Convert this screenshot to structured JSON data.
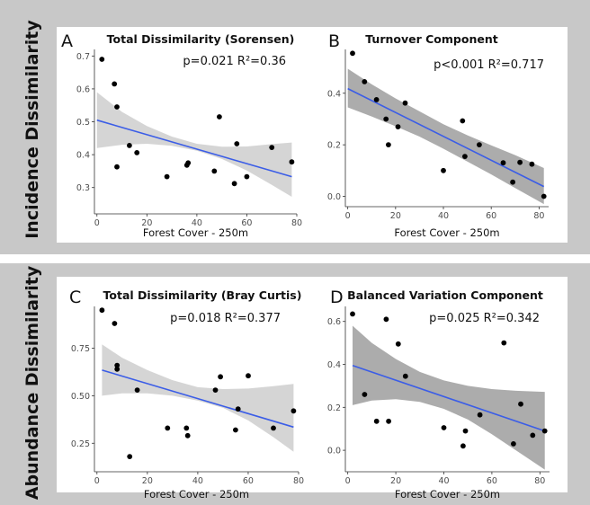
{
  "row_labels": [
    "Incidence Dissimilarity",
    "Abundance Dissimilarity"
  ],
  "colors": {
    "line": "#3b5de7",
    "ci_light": "#d3d3d3",
    "ci_dark": "#9e9e9e",
    "point": "#000000"
  },
  "chart_data": [
    {
      "type": "scatter",
      "panel_letter": "A",
      "title": "Total Dissimilarity (Sorensen)",
      "stats": "p=0.021 R²=0.36",
      "xlabel": "Forest Cover - 250m",
      "ylabel": "",
      "xlim": [
        -1,
        80
      ],
      "ylim": [
        0.22,
        0.72
      ],
      "xticks": [
        0,
        20,
        40,
        60,
        80
      ],
      "yticks": [
        0.3,
        0.4,
        0.5,
        0.6,
        0.7
      ],
      "ytick_labels": [
        "0.3",
        "0.4",
        "0.5",
        "0.6",
        "0.7"
      ],
      "ci_shade": "light",
      "points": [
        [
          2,
          0.69
        ],
        [
          7,
          0.615
        ],
        [
          8,
          0.545
        ],
        [
          8,
          0.363
        ],
        [
          13,
          0.428
        ],
        [
          16,
          0.406
        ],
        [
          28,
          0.333
        ],
        [
          36,
          0.368
        ],
        [
          36.5,
          0.375
        ],
        [
          47,
          0.35
        ],
        [
          49,
          0.515
        ],
        [
          55,
          0.312
        ],
        [
          56,
          0.433
        ],
        [
          60,
          0.333
        ],
        [
          70,
          0.422
        ],
        [
          78,
          0.378
        ]
      ],
      "fit": [
        [
          0,
          0.505
        ],
        [
          78,
          0.333
        ]
      ],
      "ci_upper": [
        [
          0,
          0.59
        ],
        [
          10,
          0.53
        ],
        [
          20,
          0.487
        ],
        [
          30,
          0.455
        ],
        [
          40,
          0.433
        ],
        [
          50,
          0.424
        ],
        [
          60,
          0.425
        ],
        [
          70,
          0.432
        ],
        [
          78,
          0.437
        ]
      ],
      "ci_lower": [
        [
          0,
          0.42
        ],
        [
          10,
          0.43
        ],
        [
          20,
          0.433
        ],
        [
          30,
          0.427
        ],
        [
          40,
          0.412
        ],
        [
          50,
          0.387
        ],
        [
          60,
          0.352
        ],
        [
          70,
          0.308
        ],
        [
          78,
          0.272
        ]
      ]
    },
    {
      "type": "scatter",
      "panel_letter": "B",
      "title": "Turnover Component",
      "stats": "p<0.001 R²=0.717",
      "xlabel": "Forest Cover - 250m",
      "ylabel": "",
      "xlim": [
        -1,
        84
      ],
      "ylim": [
        -0.04,
        0.57
      ],
      "xticks": [
        0,
        20,
        40,
        60,
        80
      ],
      "yticks": [
        0.0,
        0.2,
        0.4
      ],
      "ytick_labels": [
        "0.0",
        "0.2",
        "0.4"
      ],
      "ci_shade": "dark",
      "points": [
        [
          2,
          0.555
        ],
        [
          7,
          0.445
        ],
        [
          12,
          0.375
        ],
        [
          16,
          0.3
        ],
        [
          17,
          0.2
        ],
        [
          21,
          0.27
        ],
        [
          24,
          0.362
        ],
        [
          40,
          0.1
        ],
        [
          48,
          0.293
        ],
        [
          49,
          0.155
        ],
        [
          55,
          0.2
        ],
        [
          65,
          0.13
        ],
        [
          69,
          0.055
        ],
        [
          72,
          0.132
        ],
        [
          77,
          0.125
        ],
        [
          82,
          0.0
        ]
      ],
      "fit": [
        [
          0,
          0.418
        ],
        [
          82,
          0.038
        ]
      ],
      "ci_upper": [
        [
          0,
          0.495
        ],
        [
          10,
          0.435
        ],
        [
          20,
          0.38
        ],
        [
          30,
          0.33
        ],
        [
          40,
          0.28
        ],
        [
          50,
          0.237
        ],
        [
          60,
          0.198
        ],
        [
          70,
          0.16
        ],
        [
          82,
          0.11
        ]
      ],
      "ci_lower": [
        [
          0,
          0.345
        ],
        [
          10,
          0.31
        ],
        [
          20,
          0.272
        ],
        [
          30,
          0.232
        ],
        [
          40,
          0.185
        ],
        [
          50,
          0.135
        ],
        [
          60,
          0.085
        ],
        [
          70,
          0.032
        ],
        [
          82,
          -0.03
        ]
      ]
    },
    {
      "type": "scatter",
      "panel_letter": "C",
      "title": "Total Dissimilarity (Bray Curtis)",
      "stats": "p=0.018 R²=0.377",
      "xlabel": "Forest Cover - 250m",
      "ylabel": "",
      "xlim": [
        -1,
        80
      ],
      "ylim": [
        0.1,
        0.97
      ],
      "xticks": [
        0,
        20,
        40,
        60,
        80
      ],
      "yticks": [
        0.25,
        0.5,
        0.75
      ],
      "ytick_labels": [
        "0.25",
        "0.50",
        "0.75"
      ],
      "ci_shade": "light",
      "points": [
        [
          2,
          0.95
        ],
        [
          7,
          0.88
        ],
        [
          8,
          0.66
        ],
        [
          8,
          0.64
        ],
        [
          13,
          0.18
        ],
        [
          16,
          0.53
        ],
        [
          28,
          0.33
        ],
        [
          35.5,
          0.33
        ],
        [
          36,
          0.29
        ],
        [
          47,
          0.53
        ],
        [
          49,
          0.6
        ],
        [
          55,
          0.32
        ],
        [
          56,
          0.43
        ],
        [
          60,
          0.605
        ],
        [
          70,
          0.33
        ],
        [
          78,
          0.42
        ]
      ],
      "fit": [
        [
          2,
          0.635
        ],
        [
          78,
          0.335
        ]
      ],
      "ci_upper": [
        [
          2,
          0.77
        ],
        [
          10,
          0.7
        ],
        [
          20,
          0.635
        ],
        [
          30,
          0.582
        ],
        [
          40,
          0.545
        ],
        [
          50,
          0.535
        ],
        [
          60,
          0.538
        ],
        [
          70,
          0.55
        ],
        [
          78,
          0.562
        ]
      ],
      "ci_lower": [
        [
          2,
          0.5
        ],
        [
          10,
          0.513
        ],
        [
          20,
          0.513
        ],
        [
          30,
          0.5
        ],
        [
          40,
          0.474
        ],
        [
          50,
          0.436
        ],
        [
          60,
          0.37
        ],
        [
          70,
          0.282
        ],
        [
          78,
          0.205
        ]
      ]
    },
    {
      "type": "scatter",
      "panel_letter": "D",
      "title": "Balanced Variation Component",
      "stats": "p=0.025 R²=0.342",
      "xlabel": "Forest Cover - 250m",
      "ylabel": "",
      "xlim": [
        -1,
        84
      ],
      "ylim": [
        -0.1,
        0.67
      ],
      "xticks": [
        0,
        20,
        40,
        60,
        80
      ],
      "yticks": [
        0.0,
        0.2,
        0.4,
        0.6
      ],
      "ytick_labels": [
        "0.0",
        "0.2",
        "0.4",
        "0.6"
      ],
      "ci_shade": "dark",
      "points": [
        [
          2,
          0.635
        ],
        [
          7,
          0.26
        ],
        [
          12,
          0.135
        ],
        [
          16,
          0.61
        ],
        [
          17,
          0.135
        ],
        [
          21,
          0.495
        ],
        [
          24,
          0.345
        ],
        [
          40,
          0.105
        ],
        [
          48,
          0.02
        ],
        [
          49,
          0.09
        ],
        [
          55,
          0.165
        ],
        [
          65,
          0.5
        ],
        [
          69,
          0.03
        ],
        [
          72,
          0.215
        ],
        [
          77,
          0.07
        ],
        [
          82,
          0.09
        ]
      ],
      "fit": [
        [
          2,
          0.395
        ],
        [
          82,
          0.09
        ]
      ],
      "ci_upper": [
        [
          2,
          0.58
        ],
        [
          10,
          0.5
        ],
        [
          20,
          0.425
        ],
        [
          30,
          0.365
        ],
        [
          40,
          0.325
        ],
        [
          50,
          0.3
        ],
        [
          60,
          0.285
        ],
        [
          70,
          0.277
        ],
        [
          82,
          0.272
        ]
      ],
      "ci_lower": [
        [
          2,
          0.21
        ],
        [
          10,
          0.232
        ],
        [
          20,
          0.238
        ],
        [
          30,
          0.225
        ],
        [
          40,
          0.193
        ],
        [
          50,
          0.143
        ],
        [
          60,
          0.075
        ],
        [
          70,
          0.0
        ],
        [
          82,
          -0.09
        ]
      ]
    }
  ]
}
